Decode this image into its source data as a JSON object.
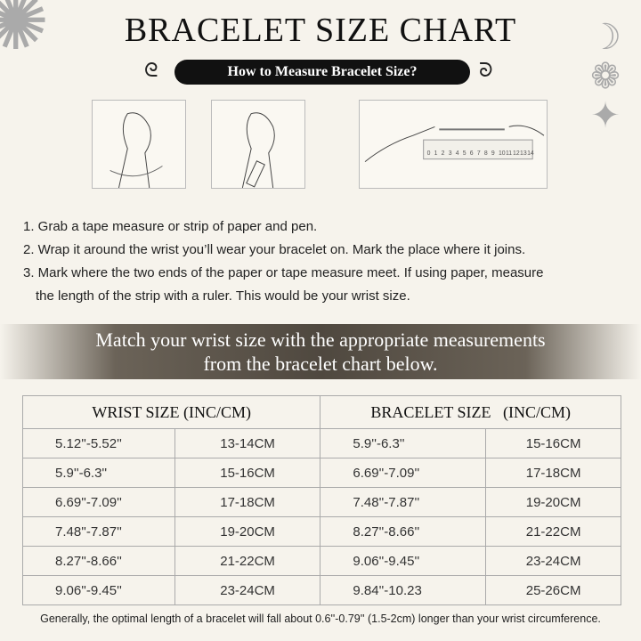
{
  "title": "BRACELET SIZE CHART",
  "subtitle": "How to Measure Bracelet Size?",
  "ruler_labels": [
    "0",
    "1",
    "2",
    "3",
    "4",
    "5",
    "6",
    "7",
    "8",
    "9",
    "10",
    "11",
    "12",
    "13",
    "14"
  ],
  "steps": [
    "1. Grab a tape measure or strip of paper and pen.",
    "2. Wrap it around the wrist you’ll wear your bracelet on. Mark the place where it joins.",
    "3. Mark where the two ends of the paper or tape measure meet. If using paper, measure",
    "the length of the strip with a ruler. This would be your wrist size."
  ],
  "band": {
    "line1": "Match your wrist size with the appropriate measurements",
    "line2": "from the bracelet chart below."
  },
  "table": {
    "headers": [
      "WRIST SIZE (INC/CM)",
      "BRACELET SIZE   (INC/CM)"
    ],
    "rows": [
      [
        "5.12''-5.52''",
        "13-14CM",
        "5.9''-6.3''",
        "15-16CM"
      ],
      [
        "5.9''-6.3''",
        "15-16CM",
        "6.69''-7.09''",
        "17-18CM"
      ],
      [
        "6.69''-7.09''",
        "17-18CM",
        "7.48''-7.87''",
        "19-20CM"
      ],
      [
        "7.48''-7.87''",
        "19-20CM",
        "8.27''-8.66''",
        "21-22CM"
      ],
      [
        "8.27''-8.66''",
        "21-22CM",
        "9.06''-9.45''",
        "23-24CM"
      ],
      [
        "9.06''-9.45''",
        "23-24CM",
        "9.84''-10.23",
        "25-26CM"
      ]
    ]
  },
  "footnote": "Generally, the optimal length of a bracelet will fall about 0.6''-0.79'' (1.5-2cm) longer than your wrist circumference."
}
